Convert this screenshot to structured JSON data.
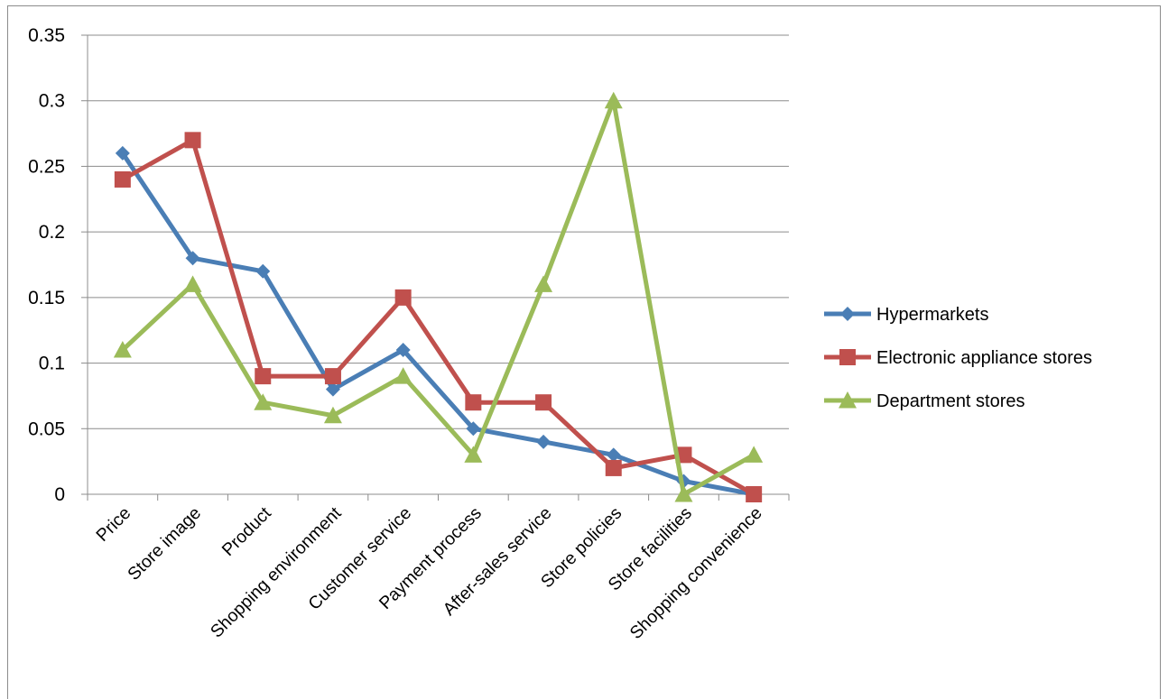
{
  "chart_data": {
    "type": "line",
    "title": "",
    "xlabel": "",
    "ylabel": "",
    "categories": [
      "Price",
      "Store image",
      "Product",
      "Shopping environment",
      "Customer service",
      "Payment process",
      "After-sales service",
      "Store policies",
      "Store facilities",
      "Shopping convenience"
    ],
    "ylim": [
      0,
      0.35
    ],
    "yticks": [
      "0",
      "0.05",
      "0.1",
      "0.15",
      "0.2",
      "0.25",
      "0.3",
      "0.35"
    ],
    "grid": true,
    "legend_position": "right",
    "series": [
      {
        "name": "Hypermarkets",
        "color": "#4a7eb5",
        "marker": "diamond",
        "values": [
          0.26,
          0.18,
          0.17,
          0.08,
          0.11,
          0.05,
          0.04,
          0.03,
          0.01,
          0.0
        ]
      },
      {
        "name": "Electronic appliance stores",
        "color": "#c0504d",
        "marker": "square",
        "values": [
          0.24,
          0.27,
          0.09,
          0.09,
          0.15,
          0.07,
          0.07,
          0.02,
          0.03,
          0.0
        ]
      },
      {
        "name": "Department stores",
        "color": "#9bbb59",
        "marker": "triangle",
        "values": [
          0.11,
          0.16,
          0.07,
          0.06,
          0.09,
          0.03,
          0.16,
          0.3,
          0.0,
          0.03
        ]
      }
    ]
  }
}
